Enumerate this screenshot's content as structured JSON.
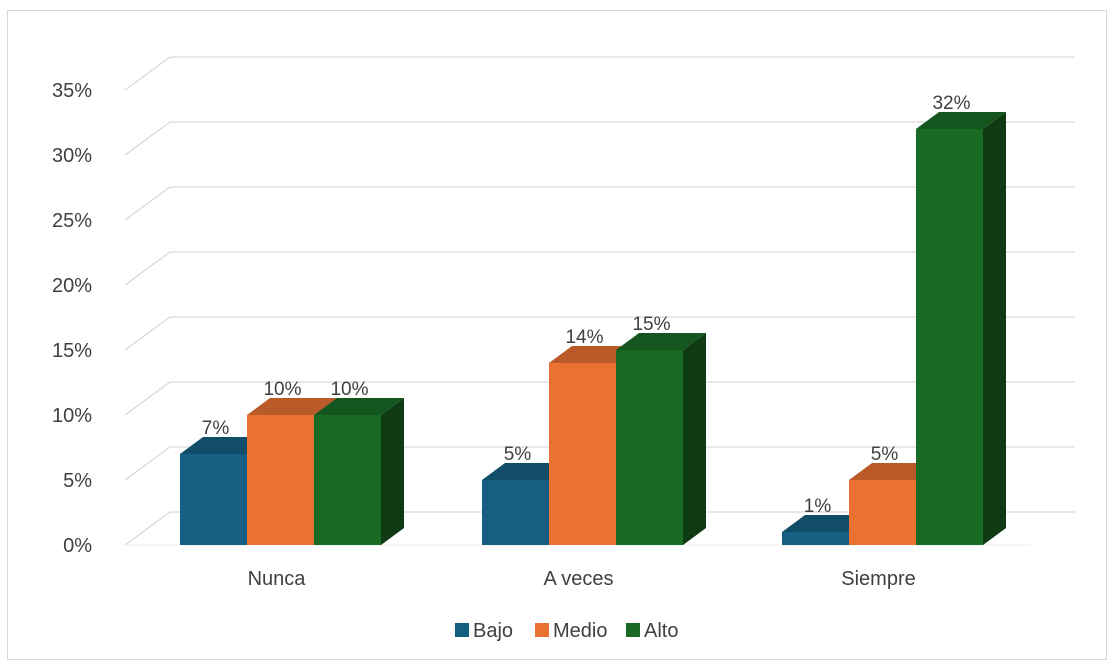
{
  "chart_data": {
    "type": "bar",
    "categories": [
      "Nunca",
      "A veces",
      "Siempre"
    ],
    "series": [
      {
        "name": "Bajo",
        "color": "#156082",
        "values": [
          7,
          5,
          1
        ]
      },
      {
        "name": "Medio",
        "color": "#E97132",
        "values": [
          10,
          14,
          5
        ]
      },
      {
        "name": "Alto",
        "color": "#196B24",
        "values": [
          10,
          15,
          32
        ]
      }
    ],
    "data_labels": [
      [
        "7%",
        "5%",
        "1%"
      ],
      [
        "10%",
        "14%",
        "5%"
      ],
      [
        "10%",
        "15%",
        "32%"
      ]
    ],
    "yticks": [
      "0%",
      "5%",
      "10%",
      "15%",
      "20%",
      "25%",
      "30%",
      "35%"
    ],
    "ylim": [
      0,
      35
    ],
    "grid": true,
    "legend_position": "bottom",
    "style": "3d-clustered-column"
  }
}
